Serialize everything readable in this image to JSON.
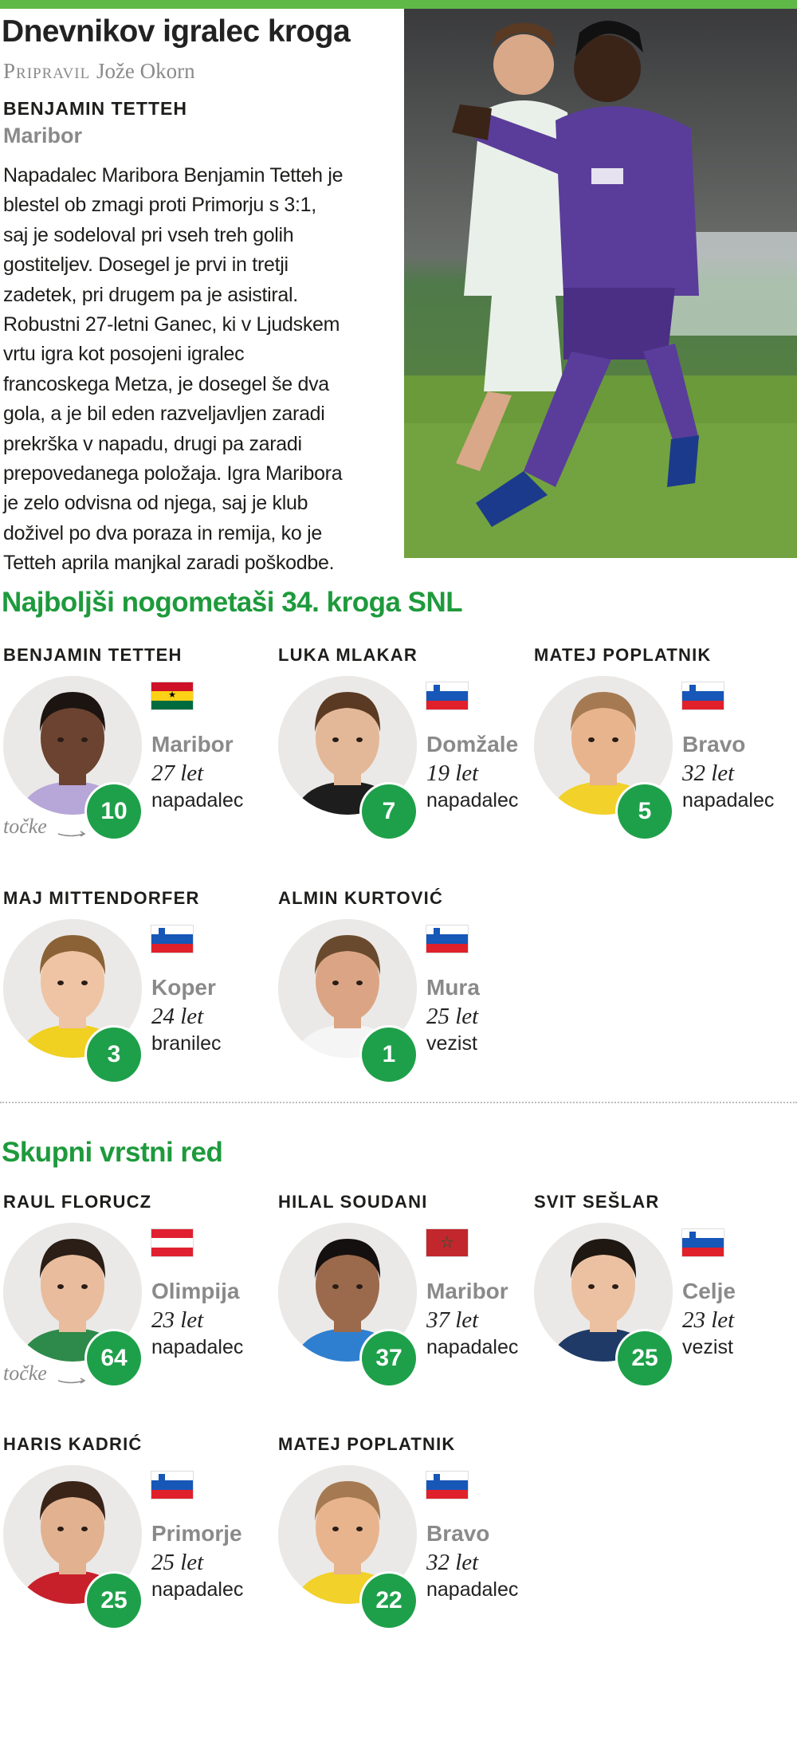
{
  "header": {
    "title": "Dnevnikov igralec kroga",
    "byline_prefix": "Pripravil",
    "byline_name": "Jože Okorn"
  },
  "featured": {
    "name": "BENJAMIN TETTEH",
    "club": "Maribor",
    "paragraph_lines": [
      "Napadalec Maribora Benjamin Tetteh je",
      "blestel ob zmagi proti Primorju s 3:1,",
      "saj  je sodeloval pri vseh treh golih",
      "gostiteljev. Dosegel je prvi in tretji",
      "zadetek, pri drugem pa je asistiral.",
      "Robustni 27-letni Ganec, ki v Ljudskem",
      "vrtu  igra kot posojeni igralec",
      "francoskega Metza, je dosegel še dva",
      "gola, a je bil eden razveljavljen zaradi",
      "prekrška v napadu, drugi pa zaradi",
      "prepovedanega položaja. Igra Maribora",
      "je zelo odvisna od njega, saj je klub",
      "doživel po dva poraza in remija, ko je",
      "Tetteh aprila manjkal zaradi poškodbe."
    ]
  },
  "points_label": "točke",
  "colors": {
    "accent_bar": "#5fb946",
    "heading_green": "#1e9a3c",
    "badge_green": "#1ea04a",
    "club_gray": "#8a8a8a"
  },
  "sections": [
    {
      "heading": "Najboljši nogometaši 34. kroga SNL",
      "players": [
        {
          "name": "BENJAMIN TETTEH",
          "flag": "ghana",
          "club": "Maribor",
          "age": "27 let",
          "position": "napadalec",
          "points": "10",
          "skin": "#6b4330",
          "hair": "#1c1410",
          "jersey": "#b7a6d8"
        },
        {
          "name": "LUKA MLAKAR",
          "flag": "slovenia",
          "club": "Domžale",
          "age": "19 let",
          "position": "napadalec",
          "points": "7",
          "skin": "#e3b898",
          "hair": "#5a3a22",
          "jersey": "#1d1d1d"
        },
        {
          "name": "MATEJ POPLATNIK",
          "flag": "slovenia",
          "club": "Bravo",
          "age": "32 let",
          "position": "napadalec",
          "points": "5",
          "skin": "#e8b48e",
          "hair": "#a57a52",
          "jersey": "#f2d12a"
        },
        {
          "name": "MAJ MITTENDORFER",
          "flag": "slovenia",
          "club": "Koper",
          "age": "24 let",
          "position": "branilec",
          "points": "3",
          "skin": "#eec4a4",
          "hair": "#8a6236",
          "jersey": "#f0d020"
        },
        {
          "name": "ALMIN KURTOVIĆ",
          "flag": "slovenia",
          "club": "Mura",
          "age": "25 let",
          "position": "vezist",
          "points": "1",
          "skin": "#dba585",
          "hair": "#6a4a2e",
          "jersey": "#f5f5f5"
        }
      ]
    },
    {
      "heading": "Skupni vrstni red",
      "players": [
        {
          "name": "RAUL FLORUCZ",
          "flag": "austria",
          "club": "Olimpija",
          "age": "23 let",
          "position": "napadalec",
          "points": "64",
          "skin": "#e8bc9c",
          "hair": "#2a1e16",
          "jersey": "#2e8a4a"
        },
        {
          "name": "HILAL SOUDANI",
          "flag": "morocco",
          "club": "Maribor",
          "age": "37 let",
          "position": "napadalec",
          "points": "37",
          "skin": "#9b6a4c",
          "hair": "#151010",
          "jersey": "#2f7fd0"
        },
        {
          "name": "SVIT SEŠLAR",
          "flag": "slovenia",
          "club": "Celje",
          "age": "23 let",
          "position": "vezist",
          "points": "25",
          "skin": "#ecc1a2",
          "hair": "#1e1712",
          "jersey": "#1f3a66"
        },
        {
          "name": "HARIS KADRIĆ",
          "flag": "slovenia",
          "club": "Primorje",
          "age": "25 let",
          "position": "napadalec",
          "points": "25",
          "skin": "#e2b190",
          "hair": "#3a2418",
          "jersey": "#c8202a"
        },
        {
          "name": "MATEJ POPLATNIK",
          "flag": "slovenia",
          "club": "Bravo",
          "age": "32 let",
          "position": "napadalec",
          "points": "22",
          "skin": "#e8b48e",
          "hair": "#a57a52",
          "jersey": "#f2d12a"
        }
      ]
    }
  ]
}
